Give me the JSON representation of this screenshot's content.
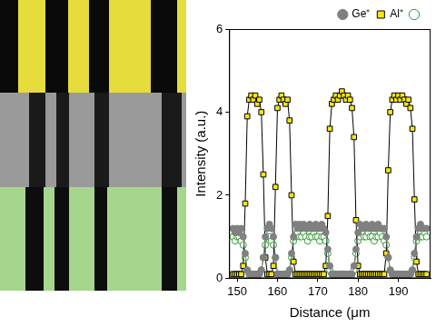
{
  "chart_data": {
    "type": "line",
    "x_label": "Distance (μm",
    "y_label": "Intensity (a.u.)",
    "x": [
      149,
      149.5,
      150,
      150.5,
      151,
      151.5,
      152,
      152.5,
      153,
      153.5,
      154,
      154.5,
      155,
      155.5,
      156,
      156.5,
      157,
      157.5,
      158,
      158.5,
      159,
      159.5,
      160,
      160.5,
      161,
      161.5,
      162,
      162.5,
      163,
      163.5,
      164,
      164.5,
      165,
      165.5,
      166,
      166.5,
      167,
      167.5,
      168,
      168.5,
      169,
      169.5,
      170,
      170.5,
      171,
      171.5,
      172,
      172.5,
      173,
      173.5,
      174,
      174.5,
      175,
      175.5,
      176,
      176.5,
      177,
      177.5,
      178,
      178.5,
      179,
      179.5,
      180,
      180.5,
      181,
      181.5,
      182,
      182.5,
      183,
      183.5,
      184,
      184.5,
      185,
      185.5,
      186,
      186.5,
      187,
      187.5,
      188,
      188.5,
      189,
      189.5,
      190,
      190.5,
      191,
      191.5,
      192,
      192.5,
      193,
      193.5,
      194,
      194.5,
      195,
      195.5,
      196,
      196.5,
      197
    ],
    "series": [
      {
        "name": "Ge⁺",
        "color": "#808080",
        "marker": "circle",
        "values": [
          1.2,
          1.1,
          1.2,
          1.1,
          1.2,
          1.0,
          0.6,
          0.2,
          0.1,
          0.1,
          0.1,
          0.1,
          0.1,
          0.1,
          0.2,
          0.5,
          1.0,
          1.2,
          1.3,
          1.2,
          1.0,
          0.5,
          0.1,
          0.1,
          0.1,
          0.1,
          0.1,
          0.1,
          0.2,
          0.6,
          1.0,
          1.3,
          1.2,
          1.3,
          1.2,
          1.3,
          1.2,
          1.2,
          1.3,
          1.2,
          1.2,
          1.3,
          1.2,
          1.2,
          1.3,
          1.2,
          1.1,
          0.7,
          0.3,
          0.1,
          0.1,
          0.1,
          0.1,
          0.1,
          0.1,
          0.1,
          0.1,
          0.1,
          0.1,
          0.1,
          0.3,
          0.7,
          1.1,
          1.3,
          1.2,
          1.2,
          1.3,
          1.2,
          1.2,
          1.3,
          1.2,
          1.2,
          1.3,
          1.2,
          1.2,
          1.2,
          1.0,
          0.5,
          0.2,
          0.1,
          0.1,
          0.1,
          0.1,
          0.1,
          0.1,
          0.1,
          0.1,
          0.1,
          0.1,
          0.2,
          0.6,
          1.0,
          1.2,
          1.3,
          1.2,
          1.2,
          1.2
        ]
      },
      {
        "name": "Al⁺",
        "color": "#f5e614",
        "marker": "square",
        "values": [
          0.1,
          0.1,
          0.1,
          0.1,
          0.1,
          0.3,
          1.8,
          3.9,
          4.3,
          4.4,
          4.3,
          4.4,
          4.2,
          4.3,
          4.0,
          2.5,
          0.5,
          0.1,
          0.1,
          0.1,
          0.3,
          2.2,
          4.1,
          4.3,
          4.4,
          4.3,
          4.2,
          4.3,
          3.8,
          2.0,
          0.4,
          0.1,
          0.1,
          0.1,
          0.1,
          0.1,
          0.1,
          0.1,
          0.1,
          0.1,
          0.1,
          0.1,
          0.1,
          0.1,
          0.1,
          0.1,
          0.3,
          1.5,
          3.6,
          4.2,
          4.3,
          4.4,
          4.3,
          4.4,
          4.5,
          4.4,
          4.3,
          4.4,
          4.3,
          4.1,
          3.4,
          1.4,
          0.3,
          0.1,
          0.1,
          0.1,
          0.1,
          0.1,
          0.1,
          0.1,
          0.1,
          0.1,
          0.1,
          0.1,
          0.1,
          0.1,
          0.6,
          2.6,
          4.0,
          4.3,
          4.4,
          4.3,
          4.4,
          4.3,
          4.4,
          4.3,
          4.2,
          4.3,
          4.1,
          3.6,
          1.9,
          0.4,
          0.1,
          0.1,
          0.1,
          0.1,
          0.1
        ]
      },
      {
        "color": "#2e9e2e",
        "marker": "open_circle",
        "values": [
          1.0,
          0.9,
          1.0,
          1.0,
          0.9,
          0.8,
          0.5,
          0.2,
          0.1,
          0.1,
          0.1,
          0.1,
          0.1,
          0.1,
          0.2,
          0.5,
          0.8,
          1.0,
          1.0,
          0.9,
          0.8,
          0.5,
          0.1,
          0.1,
          0.1,
          0.1,
          0.1,
          0.1,
          0.2,
          0.5,
          0.9,
          1.0,
          1.1,
          1.0,
          1.0,
          1.1,
          1.0,
          0.9,
          1.0,
          1.0,
          1.1,
          1.0,
          1.0,
          0.9,
          1.0,
          1.0,
          0.9,
          0.6,
          0.2,
          0.1,
          0.1,
          0.1,
          0.1,
          0.1,
          0.1,
          0.1,
          0.1,
          0.1,
          0.1,
          0.1,
          0.2,
          0.6,
          0.9,
          1.0,
          1.1,
          1.0,
          1.0,
          1.1,
          1.0,
          1.0,
          0.9,
          1.0,
          1.0,
          1.1,
          1.0,
          0.9,
          0.8,
          0.5,
          0.2,
          0.1,
          0.1,
          0.1,
          0.1,
          0.1,
          0.1,
          0.1,
          0.1,
          0.1,
          0.1,
          0.2,
          0.5,
          0.9,
          1.0,
          1.0,
          1.0,
          1.1,
          1.0
        ]
      }
    ],
    "xlim": [
      148,
      198
    ],
    "ylim": [
      0,
      6
    ],
    "xticks": [
      150,
      160,
      170,
      180,
      190
    ],
    "yticks": [
      0,
      2,
      4,
      6
    ],
    "grid": false,
    "legend": "top"
  }
}
